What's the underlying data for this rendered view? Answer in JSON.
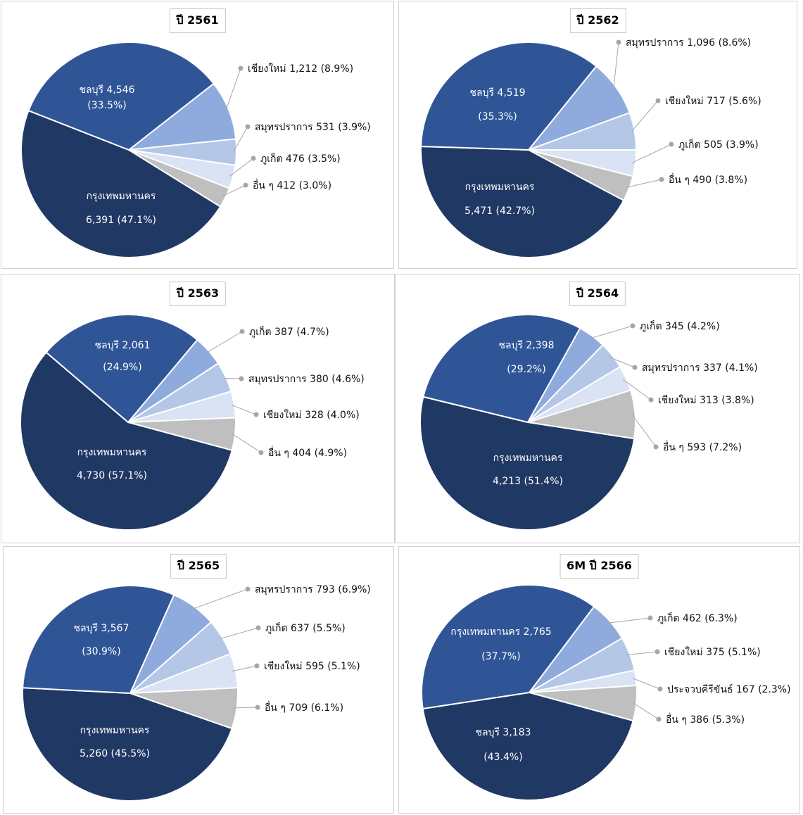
{
  "chart_data": [
    {
      "type": "pie",
      "title": "ปี 2561",
      "slices": [
        {
          "label": "เชียงใหม่",
          "value": 1212,
          "value_text": "1,212",
          "pct_text": "(8.9%)",
          "color": "#8faadc"
        },
        {
          "label": "สมุทรปราการ",
          "value": 531,
          "value_text": "531",
          "pct_text": "(3.9%)",
          "color": "#b4c7e7"
        },
        {
          "label": "ภูเก็ต",
          "value": 476,
          "value_text": "476",
          "pct_text": "(3.5%)",
          "color": "#dae3f3"
        },
        {
          "label": "อื่น ๆ",
          "value": 412,
          "value_text": "412",
          "pct_text": "(3.0%)",
          "color": "#bfbfbf"
        },
        {
          "label": "กรุงเทพมหานคร",
          "value": 6391,
          "value_text": "6,391",
          "pct_text": "(47.1%)",
          "color": "#203864"
        },
        {
          "label": "ชลบุรี",
          "value": 4546,
          "value_text": "4,546",
          "pct_text": "(33.5%)",
          "color": "#2f5597"
        }
      ]
    },
    {
      "type": "pie",
      "title": "ปี 2562",
      "slices": [
        {
          "label": "สมุทรปราการ",
          "value": 1096,
          "value_text": "1,096",
          "pct_text": "(8.6%)",
          "color": "#8faadc"
        },
        {
          "label": "เชียงใหม่",
          "value": 717,
          "value_text": "717",
          "pct_text": "(5.6%)",
          "color": "#b4c7e7"
        },
        {
          "label": "ภูเก็ต",
          "value": 505,
          "value_text": "505",
          "pct_text": "(3.9%)",
          "color": "#dae3f3"
        },
        {
          "label": "อื่น ๆ",
          "value": 490,
          "value_text": "490",
          "pct_text": "(3.8%)",
          "color": "#bfbfbf"
        },
        {
          "label": "กรุงเทพมหานคร",
          "value": 5471,
          "value_text": "5,471",
          "pct_text": "(42.7%)",
          "color": "#203864"
        },
        {
          "label": "ชลบุรี",
          "value": 4519,
          "value_text": "4,519",
          "pct_text": "(35.3%)",
          "color": "#2f5597"
        }
      ]
    },
    {
      "type": "pie",
      "title": "ปี 2563",
      "slices": [
        {
          "label": "ภูเก็ต",
          "value": 387,
          "value_text": "387",
          "pct_text": "(4.7%)",
          "color": "#8faadc"
        },
        {
          "label": "สมุทรปราการ",
          "value": 380,
          "value_text": "380",
          "pct_text": "(4.6%)",
          "color": "#b4c7e7"
        },
        {
          "label": "เชียงใหม่",
          "value": 328,
          "value_text": "328",
          "pct_text": "(4.0%)",
          "color": "#dae3f3"
        },
        {
          "label": "อื่น ๆ",
          "value": 404,
          "value_text": "404",
          "pct_text": "(4.9%)",
          "color": "#bfbfbf"
        },
        {
          "label": "กรุงเทพมหานคร",
          "value": 4730,
          "value_text": "4,730",
          "pct_text": "(57.1%)",
          "color": "#203864"
        },
        {
          "label": "ชลบุรี",
          "value": 2061,
          "value_text": "2,061",
          "pct_text": "(24.9%)",
          "color": "#2f5597"
        }
      ]
    },
    {
      "type": "pie",
      "title": "ปี 2564",
      "slices": [
        {
          "label": "ภูเก็ต",
          "value": 345,
          "value_text": "345",
          "pct_text": "(4.2%)",
          "color": "#8faadc"
        },
        {
          "label": "สมุทรปราการ",
          "value": 337,
          "value_text": "337",
          "pct_text": "(4.1%)",
          "color": "#b4c7e7"
        },
        {
          "label": "เชียงใหม่",
          "value": 313,
          "value_text": "313",
          "pct_text": "(3.8%)",
          "color": "#dae3f3"
        },
        {
          "label": "อื่น ๆ",
          "value": 593,
          "value_text": "593",
          "pct_text": "(7.2%)",
          "color": "#bfbfbf"
        },
        {
          "label": "กรุงเทพมหานคร",
          "value": 4213,
          "value_text": "4,213",
          "pct_text": "(51.4%)",
          "color": "#203864"
        },
        {
          "label": "ชลบุรี",
          "value": 2398,
          "value_text": "2,398",
          "pct_text": "(29.2%)",
          "color": "#2f5597"
        }
      ]
    },
    {
      "type": "pie",
      "title": "ปี 2565",
      "slices": [
        {
          "label": "สมุทรปราการ",
          "value": 793,
          "value_text": "793",
          "pct_text": "(6.9%)",
          "color": "#8faadc"
        },
        {
          "label": "ภูเก็ต",
          "value": 637,
          "value_text": "637",
          "pct_text": "(5.5%)",
          "color": "#b4c7e7"
        },
        {
          "label": "เชียงใหม่",
          "value": 595,
          "value_text": "595",
          "pct_text": "(5.1%)",
          "color": "#dae3f3"
        },
        {
          "label": "อื่น ๆ",
          "value": 709,
          "value_text": "709",
          "pct_text": "(6.1%)",
          "color": "#bfbfbf"
        },
        {
          "label": "กรุงเทพมหานคร",
          "value": 5260,
          "value_text": "5,260",
          "pct_text": "(45.5%)",
          "color": "#203864"
        },
        {
          "label": "ชลบุรี",
          "value": 3567,
          "value_text": "3,567",
          "pct_text": "(30.9%)",
          "color": "#2f5597"
        }
      ]
    },
    {
      "type": "pie",
      "title": "6M ปี 2566",
      "slices": [
        {
          "label": "ภูเก็ต",
          "value": 462,
          "value_text": "462",
          "pct_text": "(6.3%)",
          "color": "#8faadc"
        },
        {
          "label": "เชียงใหม่",
          "value": 375,
          "value_text": "375",
          "pct_text": "(5.1%)",
          "color": "#b4c7e7"
        },
        {
          "label": "ประจวบคีรีขันธ์",
          "value": 167,
          "value_text": "167",
          "pct_text": "(2.3%)",
          "color": "#dae3f3"
        },
        {
          "label": "อื่น ๆ",
          "value": 386,
          "value_text": "386",
          "pct_text": "(5.3%)",
          "color": "#bfbfbf"
        },
        {
          "label": "ชลบุรี",
          "value": 3183,
          "value_text": "3,183",
          "pct_text": "(43.4%)",
          "color": "#203864"
        },
        {
          "label": "กรุงเทพมหานคร",
          "value": 2765,
          "value_text": "2,765",
          "pct_text": "(37.7%)",
          "color": "#2f5597"
        }
      ]
    }
  ]
}
